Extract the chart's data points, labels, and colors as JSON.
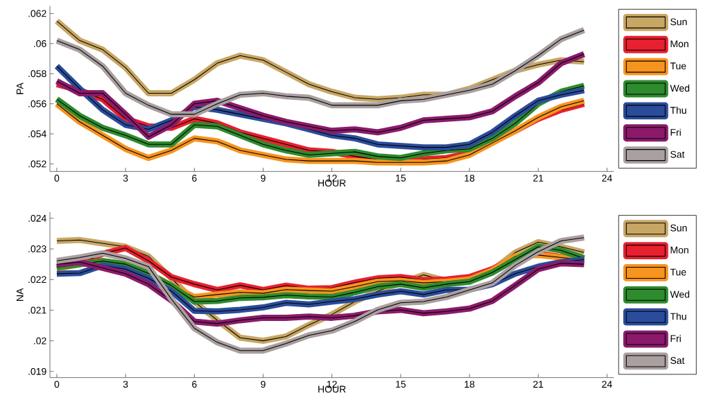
{
  "chart_data": [
    {
      "type": "line",
      "xlabel": "HOUR",
      "ylabel": "PA",
      "legend": "right",
      "x": [
        0,
        1,
        2,
        3,
        4,
        5,
        6,
        7,
        8,
        9,
        10,
        11,
        12,
        13,
        14,
        15,
        16,
        17,
        18,
        19,
        20,
        21,
        22,
        23
      ],
      "xlim": [
        -0.3,
        24.3
      ],
      "xticks": [
        0,
        3,
        6,
        9,
        12,
        15,
        18,
        21,
        24
      ],
      "ylim": [
        0.0515,
        0.0625
      ],
      "yticks": [
        {
          "value": 0.052,
          "label": ".052"
        },
        {
          "value": 0.054,
          "label": ".054"
        },
        {
          "value": 0.056,
          "label": ".056"
        },
        {
          "value": 0.058,
          "label": ".058"
        },
        {
          "value": 0.06,
          "label": ".06"
        },
        {
          "value": 0.062,
          "label": ".062"
        }
      ],
      "series": [
        {
          "name": "Sun",
          "color": "#c8a765",
          "values": [
            0.0615,
            0.0602,
            0.0596,
            0.0584,
            0.0567,
            0.0567,
            0.0576,
            0.0587,
            0.0592,
            0.0589,
            0.0581,
            0.0573,
            0.0568,
            0.0564,
            0.0563,
            0.0564,
            0.0566,
            0.0566,
            0.057,
            0.0576,
            0.0582,
            0.0586,
            0.0589,
            0.0588
          ]
        },
        {
          "name": "Mon",
          "color": "#e8202f",
          "values": [
            0.0573,
            0.0569,
            0.0563,
            0.055,
            0.0545,
            0.0544,
            0.055,
            0.0547,
            0.0541,
            0.0537,
            0.0533,
            0.0529,
            0.0528,
            0.0525,
            0.0523,
            0.0521,
            0.0523,
            0.0524,
            0.0527,
            0.0535,
            0.0542,
            0.055,
            0.0556,
            0.056
          ]
        },
        {
          "name": "Tue",
          "color": "#f7941d",
          "values": [
            0.056,
            0.0548,
            0.0539,
            0.053,
            0.0524,
            0.0529,
            0.0537,
            0.0535,
            0.0529,
            0.0526,
            0.0523,
            0.0522,
            0.0522,
            0.0522,
            0.0521,
            0.0521,
            0.0521,
            0.0522,
            0.0526,
            0.0534,
            0.0542,
            0.0551,
            0.0558,
            0.0562
          ]
        },
        {
          "name": "Wed",
          "color": "#2e8b2e",
          "values": [
            0.0563,
            0.0552,
            0.0544,
            0.0539,
            0.0533,
            0.0533,
            0.0546,
            0.0545,
            0.0539,
            0.0533,
            0.0529,
            0.0526,
            0.0527,
            0.0528,
            0.0525,
            0.0524,
            0.0527,
            0.0529,
            0.053,
            0.0537,
            0.0547,
            0.056,
            0.0568,
            0.0572
          ]
        },
        {
          "name": "Thu",
          "color": "#2b4c9b",
          "values": [
            0.0585,
            0.057,
            0.0556,
            0.0546,
            0.0543,
            0.0549,
            0.0558,
            0.0556,
            0.0553,
            0.055,
            0.0547,
            0.0543,
            0.0539,
            0.0537,
            0.0533,
            0.0532,
            0.0531,
            0.0531,
            0.0533,
            0.0541,
            0.0552,
            0.0562,
            0.0566,
            0.0569
          ]
        },
        {
          "name": "Fri",
          "color": "#8b1a6b",
          "values": [
            0.0575,
            0.0567,
            0.0567,
            0.0553,
            0.0538,
            0.0546,
            0.056,
            0.0562,
            0.0557,
            0.0552,
            0.0548,
            0.0545,
            0.0542,
            0.0543,
            0.0541,
            0.0544,
            0.0549,
            0.055,
            0.0551,
            0.0555,
            0.0565,
            0.0574,
            0.0587,
            0.0593
          ]
        },
        {
          "name": "Sat",
          "color": "#aaa0a0",
          "values": [
            0.0602,
            0.0596,
            0.0585,
            0.0567,
            0.0559,
            0.0553,
            0.0553,
            0.056,
            0.0566,
            0.0567,
            0.0565,
            0.0564,
            0.0559,
            0.0559,
            0.0559,
            0.0562,
            0.0563,
            0.0566,
            0.0569,
            0.0573,
            0.0582,
            0.0592,
            0.0603,
            0.0609
          ]
        }
      ]
    },
    {
      "type": "line",
      "xlabel": "HOUR",
      "ylabel": "NA",
      "legend": "right",
      "x": [
        0,
        1,
        2,
        3,
        4,
        5,
        6,
        7,
        8,
        9,
        10,
        11,
        12,
        13,
        14,
        15,
        16,
        17,
        18,
        19,
        20,
        21,
        22,
        23
      ],
      "xlim": [
        -0.3,
        24.3
      ],
      "xticks": [
        0,
        3,
        6,
        9,
        12,
        15,
        18,
        21,
        24
      ],
      "ylim": [
        0.0188,
        0.0242
      ],
      "yticks": [
        {
          "value": 0.019,
          "label": ".019"
        },
        {
          "value": 0.02,
          "label": ".02"
        },
        {
          "value": 0.021,
          "label": ".021"
        },
        {
          "value": 0.022,
          "label": ".022"
        },
        {
          "value": 0.023,
          "label": ".023"
        },
        {
          "value": 0.024,
          "label": ".024"
        }
      ],
      "series": [
        {
          "name": "Sun",
          "color": "#c8a765",
          "values": [
            0.02326,
            0.02329,
            0.02318,
            0.02307,
            0.02276,
            0.02204,
            0.02128,
            0.02067,
            0.0201,
            0.02,
            0.02014,
            0.02052,
            0.02086,
            0.02128,
            0.02162,
            0.02189,
            0.02215,
            0.02196,
            0.02204,
            0.0223,
            0.02288,
            0.02322,
            0.02307,
            0.02288
          ]
        },
        {
          "name": "Mon",
          "color": "#e8202f",
          "values": [
            0.0224,
            0.0225,
            0.02284,
            0.02303,
            0.02261,
            0.02208,
            0.02185,
            0.02166,
            0.02181,
            0.02166,
            0.0218,
            0.0217,
            0.02172,
            0.0219,
            0.02204,
            0.02208,
            0.02198,
            0.022,
            0.02208,
            0.02234,
            0.02272,
            0.02284,
            0.02274,
            0.02261
          ]
        },
        {
          "name": "Tue",
          "color": "#f7941d",
          "values": [
            0.02235,
            0.0225,
            0.0226,
            0.0225,
            0.0222,
            0.0218,
            0.02143,
            0.02151,
            0.02158,
            0.02155,
            0.02167,
            0.02164,
            0.02162,
            0.02177,
            0.02193,
            0.02196,
            0.02189,
            0.02193,
            0.022,
            0.0223,
            0.02276,
            0.0228,
            0.02272,
            0.02265
          ]
        },
        {
          "name": "Wed",
          "color": "#2e8b2e",
          "values": [
            0.0224,
            0.0225,
            0.0226,
            0.0225,
            0.0222,
            0.0218,
            0.02128,
            0.0213,
            0.0214,
            0.02142,
            0.02149,
            0.02145,
            0.02143,
            0.02158,
            0.02177,
            0.02185,
            0.02173,
            0.02185,
            0.02193,
            0.02223,
            0.02265,
            0.02307,
            0.02295,
            0.02269
          ]
        },
        {
          "name": "Thu",
          "color": "#2b4c9b",
          "values": [
            0.02219,
            0.02221,
            0.02246,
            0.02234,
            0.02204,
            0.02162,
            0.02098,
            0.02096,
            0.02101,
            0.02109,
            0.02124,
            0.02119,
            0.02128,
            0.02136,
            0.02151,
            0.02162,
            0.02151,
            0.02166,
            0.02167,
            0.02185,
            0.02219,
            0.02242,
            0.02257,
            0.02265
          ]
        },
        {
          "name": "Fri",
          "color": "#8b1a6b",
          "values": [
            0.0225,
            0.02257,
            0.02238,
            0.02219,
            0.02185,
            0.02132,
            0.02063,
            0.02056,
            0.02067,
            0.02075,
            0.02075,
            0.02079,
            0.02075,
            0.02082,
            0.02096,
            0.02101,
            0.0209,
            0.02096,
            0.02105,
            0.0213,
            0.02181,
            0.02234,
            0.02253,
            0.0225
          ]
        },
        {
          "name": "Sat",
          "color": "#aaa0a0",
          "values": [
            0.02261,
            0.02272,
            0.02286,
            0.02269,
            0.02242,
            0.02136,
            0.02041,
            0.01995,
            0.01968,
            0.01968,
            0.01991,
            0.02018,
            0.02033,
            0.02063,
            0.02101,
            0.02124,
            0.02128,
            0.02143,
            0.02166,
            0.02189,
            0.02246,
            0.02291,
            0.02326,
            0.02337
          ]
        }
      ]
    }
  ]
}
